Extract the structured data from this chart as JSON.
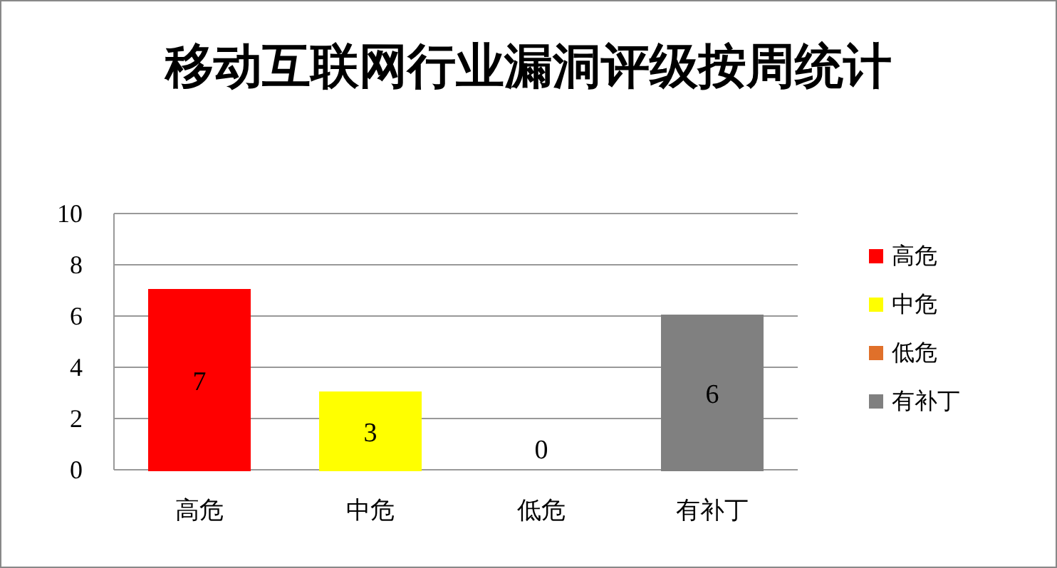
{
  "chart_data": {
    "type": "bar",
    "title": "移动互联网行业漏洞评级按周统计",
    "categories": [
      "高危",
      "中危",
      "低危",
      "有补丁"
    ],
    "series": [
      {
        "name": "高危",
        "color": "#ff0000",
        "values": [
          7,
          null,
          null,
          null
        ]
      },
      {
        "name": "中危",
        "color": "#ffff00",
        "values": [
          null,
          3,
          null,
          null
        ]
      },
      {
        "name": "低危",
        "color": "#e0702a",
        "values": [
          null,
          null,
          0,
          null
        ]
      },
      {
        "name": "有补丁",
        "color": "#808080",
        "values": [
          null,
          null,
          null,
          6
        ]
      }
    ],
    "ylim": [
      0,
      10
    ],
    "yticks": [
      0,
      2,
      4,
      6,
      8,
      10
    ],
    "grid": "y",
    "legend": "right",
    "data_labels": true
  }
}
